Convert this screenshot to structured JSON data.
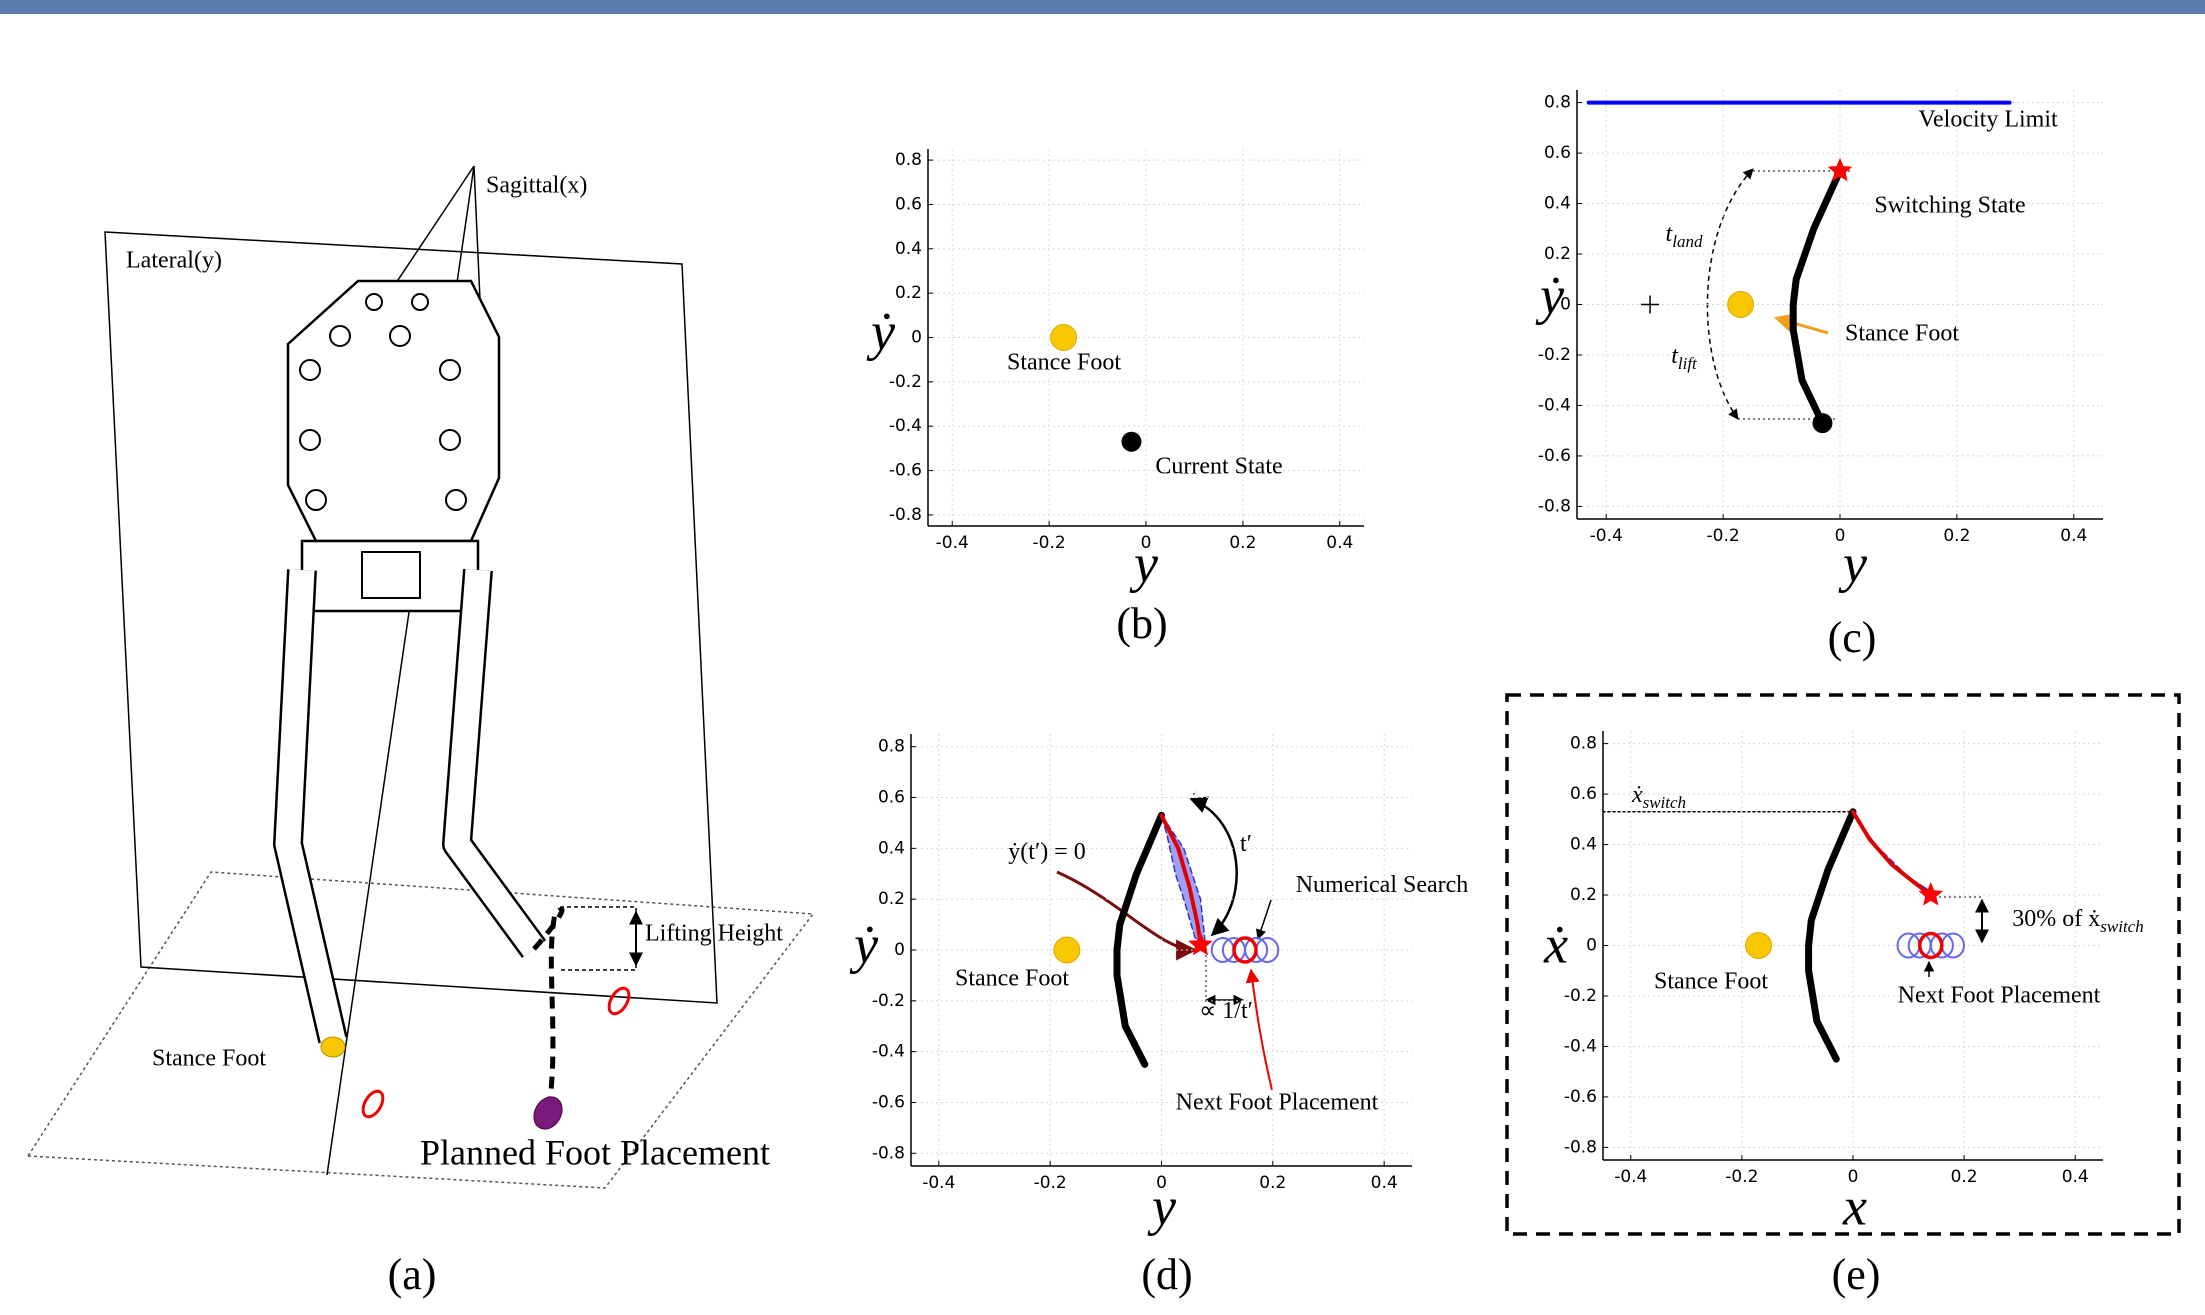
{
  "panel_a": {
    "caption": "(a)",
    "labels": {
      "sagittal": "Sagittal(x)",
      "lateral": "Lateral(y)",
      "lifting_height": "Lifting Height",
      "stance_foot": "Stance Foot",
      "planned": "Planned Foot Placement"
    }
  },
  "chart_data": [
    {
      "type": "scatter",
      "caption": "(b)",
      "xlabel": "y",
      "ylabel": "ẏ",
      "xlim": [
        -0.45,
        0.45
      ],
      "ylim": [
        -0.85,
        0.85
      ],
      "xticks": [
        -0.4,
        -0.2,
        0,
        0.2,
        0.4
      ],
      "yticks": [
        -0.8,
        -0.6,
        -0.4,
        -0.2,
        0,
        0.2,
        0.4,
        0.6,
        0.8
      ],
      "grid": true,
      "markers": [
        {
          "name": "Stance Foot",
          "x": -0.17,
          "y": 0,
          "shape": "circle",
          "color": "#f7c700"
        },
        {
          "name": "Current State",
          "x": -0.03,
          "y": -0.47,
          "shape": "dot",
          "color": "#000000"
        }
      ]
    },
    {
      "type": "scatter",
      "caption": "(c)",
      "xlabel": "y",
      "ylabel": "ẏ",
      "xlim": [
        -0.45,
        0.45
      ],
      "ylim": [
        -0.85,
        0.85
      ],
      "xticks": [
        -0.4,
        -0.2,
        0,
        0.2,
        0.4
      ],
      "yticks": [
        -0.8,
        -0.6,
        -0.4,
        -0.2,
        0,
        0.2,
        0.4,
        0.6,
        0.8
      ],
      "grid": true,
      "curves": [
        {
          "name": "Velocity Limit",
          "x": [
            -0.43,
            0.29
          ],
          "y": [
            0.8,
            0.8
          ],
          "color": "#0000ff",
          "width": 4
        },
        {
          "x": [
            -0.03,
            -0.065,
            -0.08,
            -0.08,
            -0.075,
            -0.045,
            0
          ],
          "y": [
            -0.47,
            -0.3,
            -0.1,
            0,
            0.1,
            0.3,
            0.53
          ],
          "color": "#000000",
          "width": 7
        }
      ],
      "markers": [
        {
          "name": "Stance Foot",
          "x": -0.17,
          "y": 0,
          "shape": "circle",
          "color": "#f7c700"
        },
        {
          "x": -0.03,
          "y": -0.47,
          "shape": "dot",
          "color": "#000000"
        },
        {
          "name": "Switching State",
          "x": 0,
          "y": 0.53,
          "shape": "star",
          "color": "#ff0000"
        },
        {
          "x": -0.325,
          "y": 0,
          "shape": "plus",
          "color": "#000000"
        }
      ],
      "annotations": [
        {
          "text": "t",
          "sub": "land"
        },
        {
          "text": "t",
          "sub": "lift"
        }
      ]
    },
    {
      "type": "scatter",
      "caption": "(d)",
      "xlabel": "y",
      "ylabel": "ẏ",
      "xlim": [
        -0.45,
        0.45
      ],
      "ylim": [
        -0.85,
        0.85
      ],
      "xticks": [
        -0.4,
        -0.2,
        0,
        0.2,
        0.4
      ],
      "yticks": [
        -0.8,
        -0.6,
        -0.4,
        -0.2,
        0,
        0.2,
        0.4,
        0.6,
        0.8
      ],
      "grid": true,
      "curves": [
        {
          "x": [
            -0.03,
            -0.065,
            -0.08,
            -0.08,
            -0.075,
            -0.045,
            0
          ],
          "y": [
            -0.45,
            -0.3,
            -0.1,
            0,
            0.1,
            0.3,
            0.53
          ],
          "color": "#000000",
          "width": 7
        },
        {
          "x": [
            0,
            0.04,
            0.07,
            0.08,
            0.06,
            0.04,
            0.025,
            0.01,
            0
          ],
          "y": [
            0.53,
            0.4,
            0.2,
            0,
            0.05,
            0.2,
            0.3,
            0.45,
            0.53
          ],
          "color": "#3333cc",
          "fill": "#7f7ff0",
          "width": 1.5
        },
        {
          "x": [
            0,
            0.03,
            0.05,
            0.065,
            0.07
          ],
          "y": [
            0.53,
            0.4,
            0.25,
            0.1,
            0.02
          ],
          "color": "#dd0000",
          "width": 4
        }
      ],
      "markers": [
        {
          "name": "Stance Foot",
          "x": -0.17,
          "y": 0,
          "shape": "circle",
          "color": "#f7c700"
        },
        {
          "x": 0.07,
          "y": 0.02,
          "shape": "star",
          "color": "#ff0000"
        },
        {
          "x": 0.11,
          "y": 0,
          "shape": "ring",
          "color": "#6666ee"
        },
        {
          "x": 0.13,
          "y": 0,
          "shape": "ring",
          "color": "#6666ee"
        },
        {
          "x": 0.17,
          "y": 0,
          "shape": "ring",
          "color": "#6666ee"
        },
        {
          "x": 0.19,
          "y": 0,
          "shape": "ring",
          "color": "#6666ee"
        },
        {
          "name": "Next Foot Placement",
          "x": 0.15,
          "y": 0,
          "shape": "ring",
          "color": "#ee0000"
        }
      ],
      "annotations": [
        {
          "text": "ẏ(t′) = 0"
        },
        {
          "text": "t′"
        },
        {
          "text": "Numerical Search"
        },
        {
          "text": "∝ 1/t′"
        }
      ]
    },
    {
      "type": "scatter",
      "caption": "(e)",
      "xlabel": "x",
      "ylabel": "ẋ",
      "xlim": [
        -0.45,
        0.45
      ],
      "ylim": [
        -0.85,
        0.85
      ],
      "xticks": [
        -0.4,
        -0.2,
        0,
        0.2,
        0.4
      ],
      "yticks": [
        -0.8,
        -0.6,
        -0.4,
        -0.2,
        0,
        0.2,
        0.4,
        0.6,
        0.8
      ],
      "grid": true,
      "curves": [
        {
          "x": [
            -0.45,
            0
          ],
          "y": [
            0.53,
            0.53
          ],
          "color": "#000000",
          "width": 1.5,
          "dash": true
        },
        {
          "x": [
            -0.03,
            -0.065,
            -0.08,
            -0.08,
            -0.075,
            -0.045,
            0
          ],
          "y": [
            -0.45,
            -0.3,
            -0.1,
            0,
            0.1,
            0.3,
            0.53
          ],
          "color": "#000000",
          "width": 7
        },
        {
          "x": [
            0,
            0.04,
            0.1,
            0.15,
            0.12,
            0.07,
            0.03,
            0
          ],
          "y": [
            0.53,
            0.4,
            0.27,
            0.2,
            0.24,
            0.32,
            0.43,
            0.53
          ],
          "color": "#3333cc",
          "fill": "#7f7ff0",
          "width": 1.5
        },
        {
          "x": [
            0,
            0.03,
            0.07,
            0.11,
            0.14
          ],
          "y": [
            0.53,
            0.42,
            0.32,
            0.25,
            0.2
          ],
          "color": "#dd0000",
          "width": 4
        }
      ],
      "markers": [
        {
          "name": "Stance Foot",
          "x": -0.17,
          "y": 0,
          "shape": "circle",
          "color": "#f7c700"
        },
        {
          "x": 0.14,
          "y": 0.2,
          "shape": "star",
          "color": "#ff0000"
        },
        {
          "x": 0.1,
          "y": 0,
          "shape": "ring",
          "color": "#6666ee"
        },
        {
          "x": 0.12,
          "y": 0,
          "shape": "ring",
          "color": "#6666ee"
        },
        {
          "x": 0.16,
          "y": 0,
          "shape": "ring",
          "color": "#6666ee"
        },
        {
          "x": 0.18,
          "y": 0,
          "shape": "ring",
          "color": "#6666ee"
        },
        {
          "name": "Next Foot Placement",
          "x": 0.14,
          "y": 0,
          "shape": "ring",
          "color": "#ee0000"
        }
      ],
      "annotations": [
        {
          "text": "ẋ",
          "sub": "switch"
        },
        {
          "text": "30% of ẋ",
          "sub": "switch"
        }
      ]
    }
  ]
}
